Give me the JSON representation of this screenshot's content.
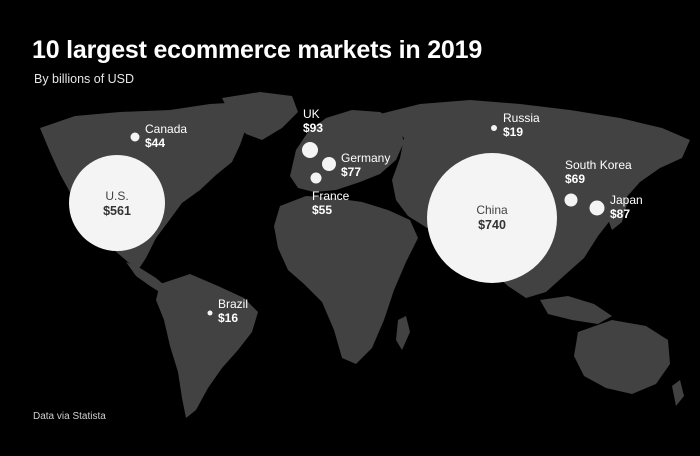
{
  "title": "10 largest ecommerce markets in 2019",
  "subtitle": "By billions of USD",
  "source": "Data via Statista",
  "colors": {
    "background": "#000000",
    "land": "#424242",
    "bubble": "#f4f4f4"
  },
  "markets": [
    {
      "key": "us",
      "name": "U.S.",
      "value": "$561"
    },
    {
      "key": "china",
      "name": "China",
      "value": "$740"
    },
    {
      "key": "uk",
      "name": "UK",
      "value": "$93"
    },
    {
      "key": "japan",
      "name": "Japan",
      "value": "$87"
    },
    {
      "key": "germany",
      "name": "Germany",
      "value": "$77"
    },
    {
      "key": "south_korea",
      "name": "South Korea",
      "value": "$69"
    },
    {
      "key": "france",
      "name": "France",
      "value": "$55"
    },
    {
      "key": "canada",
      "name": "Canada",
      "value": "$44"
    },
    {
      "key": "russia",
      "name": "Russia",
      "value": "$19"
    },
    {
      "key": "brazil",
      "name": "Brazil",
      "value": "$16"
    }
  ]
}
